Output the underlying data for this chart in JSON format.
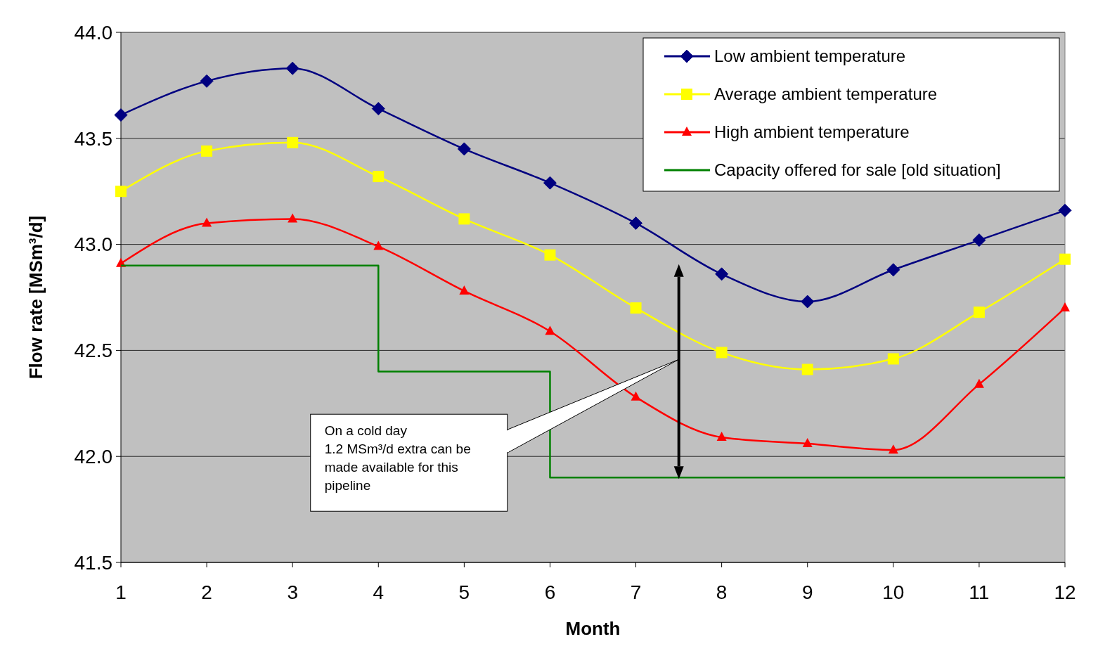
{
  "chart_data": {
    "type": "line",
    "xlabel": "Month",
    "ylabel": "Flow rate [MSm³/d]",
    "x": [
      1,
      2,
      3,
      4,
      5,
      6,
      7,
      8,
      9,
      10,
      11,
      12
    ],
    "xlim": [
      1,
      12
    ],
    "xticks": [
      1,
      2,
      3,
      4,
      5,
      6,
      7,
      8,
      9,
      10,
      11,
      12
    ],
    "ylim": [
      41.5,
      44.0
    ],
    "yticks": [
      {
        "value": 41.5,
        "label": "41.5"
      },
      {
        "value": 42,
        "label": "42.0"
      },
      {
        "value": 42.5,
        "label": "42.5"
      },
      {
        "value": 43,
        "label": "43.0"
      },
      {
        "value": 43.5,
        "label": "43.5"
      },
      {
        "value": 44,
        "label": "44.0"
      }
    ],
    "grid": "y",
    "legend": "top right",
    "line_style": "solid",
    "series": [
      {
        "name": "Low ambient temperature",
        "color": "#000080",
        "marker": "diamond",
        "values": [
          43.61,
          43.77,
          43.83,
          43.64,
          43.45,
          43.29,
          43.1,
          42.86,
          42.73,
          42.88,
          43.02,
          43.16
        ]
      },
      {
        "name": "Average ambient temperature",
        "color": "#ffff00",
        "marker": "square",
        "values": [
          43.25,
          43.44,
          43.48,
          43.32,
          43.12,
          42.95,
          42.7,
          42.49,
          42.41,
          42.46,
          42.68,
          42.93
        ]
      },
      {
        "name": "High ambient temperature",
        "color": "#ff0000",
        "marker": "triangle",
        "values": [
          42.91,
          43.1,
          43.12,
          42.99,
          42.78,
          42.59,
          42.28,
          42.09,
          42.06,
          42.03,
          42.34,
          42.7
        ]
      },
      {
        "name": "Capacity offered for sale [old situation]",
        "color": "#008000",
        "type": "step",
        "marker": "none",
        "x": [
          1,
          4,
          6,
          12
        ],
        "values": [
          42.9,
          42.4,
          41.9,
          41.9
        ]
      }
    ],
    "annotations": [
      "On a cold day\n1.2 MSm³/d extra can be made available for this pipeline"
    ]
  }
}
